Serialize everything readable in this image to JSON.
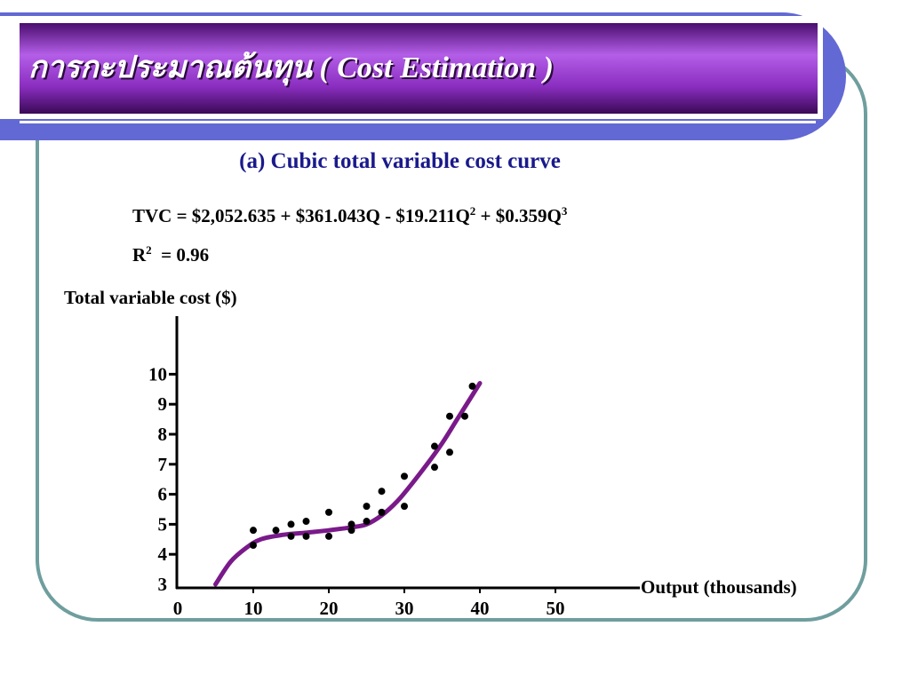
{
  "slide": {
    "title_thai": "การกะประมาณต้นทุน",
    "title_en": "( Cost Estimation )"
  },
  "colors": {
    "header_purple": "#8a2ec0",
    "border_teal": "#6f9e9e",
    "accent_blue": "#6268d4",
    "curve_purple": "#7a1a8a",
    "subtitle_blue": "#1a1a8c"
  },
  "chart_data": {
    "type": "scatter",
    "title": "(a) Cubic total variable cost curve",
    "equation": {
      "lhs": "TVC = $2,052.635 + $361.043Q",
      "term2": " - $19.211Q",
      "exp2": "2",
      "term3": " + $0.359Q",
      "exp3": "3"
    },
    "r_squared": {
      "label": "R",
      "exp": "2",
      "value": "= 0.96"
    },
    "ylabel": "Total variable cost ($)",
    "xlabel": "Output (thousands)",
    "xlim": [
      0,
      60
    ],
    "ylim": [
      3,
      10
    ],
    "x_ticks": [
      "0",
      "10",
      "20",
      "30",
      "40",
      "50"
    ],
    "y_ticks": [
      "3",
      "4",
      "5",
      "6",
      "7",
      "8",
      "9",
      "10"
    ],
    "grid": false,
    "legend": "none",
    "points": [
      {
        "x": 10,
        "y": 4.8
      },
      {
        "x": 10,
        "y": 4.3
      },
      {
        "x": 13,
        "y": 4.8
      },
      {
        "x": 15,
        "y": 5.0
      },
      {
        "x": 15,
        "y": 4.6
      },
      {
        "x": 17,
        "y": 5.1
      },
      {
        "x": 17,
        "y": 4.6
      },
      {
        "x": 20,
        "y": 5.4
      },
      {
        "x": 20,
        "y": 4.6
      },
      {
        "x": 23,
        "y": 5.0
      },
      {
        "x": 23,
        "y": 4.8
      },
      {
        "x": 25,
        "y": 5.6
      },
      {
        "x": 25,
        "y": 5.1
      },
      {
        "x": 27,
        "y": 6.1
      },
      {
        "x": 27,
        "y": 5.4
      },
      {
        "x": 30,
        "y": 6.6
      },
      {
        "x": 30,
        "y": 5.6
      },
      {
        "x": 34,
        "y": 7.6
      },
      {
        "x": 34,
        "y": 6.9
      },
      {
        "x": 36,
        "y": 8.6
      },
      {
        "x": 36,
        "y": 7.4
      },
      {
        "x": 38,
        "y": 8.6
      },
      {
        "x": 39,
        "y": 9.6
      }
    ],
    "curve": [
      {
        "x": 5,
        "y": 3.0
      },
      {
        "x": 7,
        "y": 3.75
      },
      {
        "x": 9,
        "y": 4.2
      },
      {
        "x": 11,
        "y": 4.5
      },
      {
        "x": 14,
        "y": 4.65
      },
      {
        "x": 17,
        "y": 4.72
      },
      {
        "x": 20,
        "y": 4.8
      },
      {
        "x": 23,
        "y": 4.9
      },
      {
        "x": 25,
        "y": 5.0
      },
      {
        "x": 27,
        "y": 5.3
      },
      {
        "x": 29,
        "y": 5.75
      },
      {
        "x": 31,
        "y": 6.35
      },
      {
        "x": 33,
        "y": 7.0
      },
      {
        "x": 35,
        "y": 7.7
      },
      {
        "x": 37,
        "y": 8.5
      },
      {
        "x": 40,
        "y": 9.7
      }
    ]
  }
}
